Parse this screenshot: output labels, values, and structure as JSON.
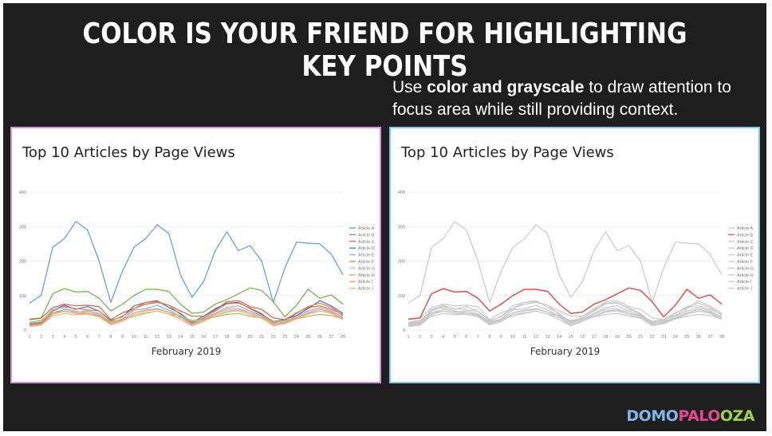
{
  "slide": {
    "title": "COLOR IS YOUR FRIEND FOR HIGHLIGHTING KEY POINTS",
    "subtitle_pre": "Use ",
    "subtitle_bold": "color and grayscale",
    "subtitle_post": " to draw attention to focus area while still providing context.",
    "logo_part1": "DOMO",
    "logo_part2": "PALO",
    "logo_part3": "OZA"
  },
  "colors": {
    "left_border": "#d98fe0",
    "right_border": "#82c6ea",
    "highlight": "#d9534f",
    "gray": "#c8c8c8"
  },
  "chart_data": [
    {
      "type": "line",
      "title": "Top 10 Articles by Page Views",
      "xlabel": "February 2019",
      "ylabel": "",
      "x": [
        1,
        2,
        3,
        4,
        5,
        6,
        7,
        8,
        9,
        10,
        11,
        12,
        13,
        14,
        15,
        16,
        17,
        18,
        19,
        20,
        21,
        22,
        23,
        24,
        25,
        26,
        27,
        28
      ],
      "yticks": [
        0,
        100,
        200,
        300,
        400
      ],
      "ylim": [
        0,
        400
      ],
      "grid": true,
      "legend": "right",
      "style": "all-colored",
      "series": [
        {
          "name": "Article A",
          "color": "#5b9bd5",
          "values": [
            78,
            100,
            240,
            265,
            315,
            290,
            200,
            80,
            170,
            240,
            265,
            305,
            280,
            160,
            95,
            140,
            230,
            285,
            230,
            245,
            200,
            80,
            180,
            255,
            252,
            250,
            220,
            160
          ]
        },
        {
          "name": "Article B",
          "color": "#70ad47",
          "values": [
            32,
            35,
            105,
            120,
            110,
            112,
            92,
            55,
            75,
            100,
            118,
            118,
            112,
            75,
            48,
            52,
            75,
            88,
            105,
            122,
            115,
            82,
            38,
            72,
            118,
            92,
            102,
            75
          ]
        },
        {
          "name": "Article C",
          "color": "#e05c4c",
          "values": [
            30,
            34,
            65,
            75,
            70,
            72,
            68,
            30,
            50,
            62,
            75,
            80,
            72,
            55,
            40,
            40,
            58,
            82,
            85,
            68,
            60,
            35,
            30,
            50,
            65,
            70,
            60,
            45
          ]
        },
        {
          "name": "Article D",
          "color": "#4472c4",
          "values": [
            18,
            22,
            58,
            72,
            60,
            68,
            55,
            28,
            38,
            70,
            80,
            85,
            65,
            48,
            22,
            40,
            62,
            78,
            80,
            62,
            45,
            25,
            30,
            42,
            62,
            85,
            70,
            48
          ]
        },
        {
          "name": "Article E",
          "color": "#8faadc",
          "values": [
            14,
            18,
            50,
            60,
            52,
            55,
            48,
            22,
            32,
            58,
            62,
            72,
            58,
            40,
            18,
            32,
            48,
            65,
            70,
            55,
            42,
            20,
            22,
            40,
            55,
            65,
            55,
            38
          ]
        },
        {
          "name": "Article F",
          "color": "#ed7d31",
          "values": [
            16,
            20,
            55,
            68,
            62,
            58,
            55,
            26,
            40,
            62,
            80,
            82,
            72,
            45,
            20,
            35,
            55,
            76,
            78,
            64,
            48,
            22,
            28,
            48,
            68,
            78,
            66,
            42
          ]
        },
        {
          "name": "Article G",
          "color": "#a5c8e0",
          "values": [
            20,
            24,
            60,
            65,
            55,
            50,
            45,
            20,
            30,
            50,
            55,
            60,
            52,
            42,
            25,
            30,
            40,
            55,
            58,
            50,
            40,
            18,
            25,
            35,
            48,
            55,
            50,
            35
          ]
        },
        {
          "name": "Article H",
          "color": "#9dc35a",
          "values": [
            22,
            28,
            50,
            55,
            48,
            45,
            40,
            25,
            30,
            40,
            48,
            55,
            46,
            38,
            28,
            30,
            38,
            45,
            48,
            40,
            35,
            25,
            28,
            32,
            40,
            45,
            42,
            32
          ]
        },
        {
          "name": "Article I",
          "color": "#ff9a5c",
          "values": [
            12,
            16,
            45,
            55,
            48,
            50,
            42,
            18,
            28,
            50,
            58,
            62,
            52,
            36,
            14,
            28,
            45,
            60,
            62,
            50,
            38,
            16,
            20,
            36,
            50,
            60,
            52,
            34
          ]
        },
        {
          "name": "Article J",
          "color": "#f4b183",
          "values": [
            10,
            14,
            40,
            48,
            44,
            46,
            38,
            15,
            24,
            45,
            50,
            55,
            46,
            30,
            12,
            25,
            40,
            52,
            55,
            45,
            34,
            12,
            18,
            32,
            46,
            55,
            48,
            30
          ]
        }
      ]
    },
    {
      "type": "line",
      "title": "Top 10 Articles by Page Views",
      "xlabel": "February 2019",
      "ylabel": "",
      "x": [
        1,
        2,
        3,
        4,
        5,
        6,
        7,
        8,
        9,
        10,
        11,
        12,
        13,
        14,
        15,
        16,
        17,
        18,
        19,
        20,
        21,
        22,
        23,
        24,
        25,
        26,
        27,
        28
      ],
      "yticks": [
        0,
        100,
        200,
        300,
        400
      ],
      "ylim": [
        0,
        400
      ],
      "grid": true,
      "legend": "right",
      "style": "highlight-B",
      "series": [
        {
          "name": "Article A",
          "values": [
            78,
            100,
            240,
            265,
            315,
            290,
            200,
            80,
            170,
            240,
            265,
            305,
            280,
            160,
            95,
            140,
            230,
            285,
            230,
            245,
            200,
            80,
            180,
            255,
            252,
            250,
            220,
            160
          ]
        },
        {
          "name": "Article B",
          "values": [
            32,
            35,
            105,
            120,
            110,
            112,
            92,
            55,
            75,
            100,
            118,
            118,
            112,
            75,
            48,
            52,
            75,
            88,
            105,
            122,
            115,
            82,
            38,
            72,
            118,
            92,
            102,
            75
          ]
        },
        {
          "name": "Article C",
          "values": [
            30,
            34,
            65,
            75,
            70,
            72,
            68,
            30,
            50,
            62,
            75,
            80,
            72,
            55,
            40,
            40,
            58,
            82,
            85,
            68,
            60,
            35,
            30,
            50,
            65,
            70,
            60,
            45
          ]
        },
        {
          "name": "Article D",
          "values": [
            18,
            22,
            58,
            72,
            60,
            68,
            55,
            28,
            38,
            70,
            80,
            85,
            65,
            48,
            22,
            40,
            62,
            78,
            80,
            62,
            45,
            25,
            30,
            42,
            62,
            85,
            70,
            48
          ]
        },
        {
          "name": "Article E",
          "values": [
            14,
            18,
            50,
            60,
            52,
            55,
            48,
            22,
            32,
            58,
            62,
            72,
            58,
            40,
            18,
            32,
            48,
            65,
            70,
            55,
            42,
            20,
            22,
            40,
            55,
            65,
            55,
            38
          ]
        },
        {
          "name": "Article F",
          "values": [
            16,
            20,
            55,
            68,
            62,
            58,
            55,
            26,
            40,
            62,
            80,
            82,
            72,
            45,
            20,
            35,
            55,
            76,
            78,
            64,
            48,
            22,
            28,
            48,
            68,
            78,
            66,
            42
          ]
        },
        {
          "name": "Article G",
          "values": [
            20,
            24,
            60,
            65,
            55,
            50,
            45,
            20,
            30,
            50,
            55,
            60,
            52,
            42,
            25,
            30,
            40,
            55,
            58,
            50,
            40,
            18,
            25,
            35,
            48,
            55,
            50,
            35
          ]
        },
        {
          "name": "Article H",
          "values": [
            22,
            28,
            50,
            55,
            48,
            45,
            40,
            25,
            30,
            40,
            48,
            55,
            46,
            38,
            28,
            30,
            38,
            45,
            48,
            40,
            35,
            25,
            28,
            32,
            40,
            45,
            42,
            32
          ]
        },
        {
          "name": "Article I",
          "values": [
            12,
            16,
            45,
            55,
            48,
            50,
            42,
            18,
            28,
            50,
            58,
            62,
            52,
            36,
            14,
            28,
            45,
            60,
            62,
            50,
            38,
            16,
            20,
            36,
            50,
            60,
            52,
            34
          ]
        },
        {
          "name": "Article J",
          "values": [
            10,
            14,
            40,
            48,
            44,
            46,
            38,
            15,
            24,
            45,
            50,
            55,
            46,
            30,
            12,
            25,
            40,
            52,
            55,
            45,
            34,
            12,
            18,
            32,
            46,
            55,
            48,
            30
          ]
        }
      ]
    }
  ]
}
